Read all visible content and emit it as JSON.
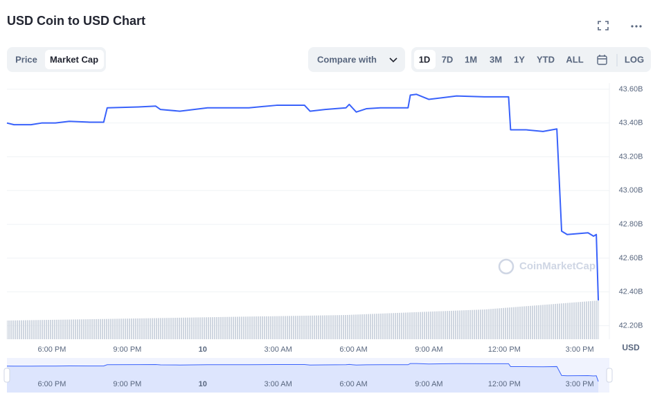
{
  "header": {
    "title": "USD Coin to USD Chart"
  },
  "controls": {
    "tabs": [
      "Price",
      "Market Cap"
    ],
    "compare": "Compare with",
    "ranges": [
      "1D",
      "7D",
      "1M",
      "3M",
      "1Y",
      "YTD",
      "ALL"
    ],
    "log": "LOG"
  },
  "chart_data": {
    "type": "line",
    "watermark": "CoinMarketCap",
    "currency_label": "USD",
    "x": [
      16.21,
      16.49,
      17.17,
      17.59,
      18.14,
      18.69,
      19.51,
      20.06,
      20.2,
      21.44,
      22.13,
      22.32,
      23.09,
      24.19,
      25.84,
      26.94,
      28.05,
      28.27,
      28.87,
      29.7,
      29.83,
      30.11,
      30.52,
      31.07,
      31.9,
      32.17,
      32.26,
      32.5,
      33.0,
      34.1,
      35.2,
      36.17,
      36.25,
      36.85,
      37.54,
      38.09,
      38.28,
      38.5,
      39.33,
      39.55,
      39.66,
      39.74
    ],
    "series": [
      {
        "name": "Market Cap",
        "color": "#3861fb",
        "values": [
          43.4,
          43.39,
          43.39,
          43.4,
          43.4,
          43.41,
          43.405,
          43.405,
          43.49,
          43.495,
          43.5,
          43.48,
          43.47,
          43.49,
          43.49,
          43.505,
          43.505,
          43.47,
          43.48,
          43.49,
          43.51,
          43.465,
          43.485,
          43.49,
          43.49,
          43.49,
          43.565,
          43.57,
          43.54,
          43.56,
          43.555,
          43.555,
          43.36,
          43.36,
          43.35,
          43.365,
          42.76,
          42.74,
          42.75,
          42.73,
          42.74,
          42.35
        ]
      }
    ],
    "xlim": [
      16.21,
      40.18
    ],
    "xticks": [
      {
        "value": 18,
        "label": "6:00 PM"
      },
      {
        "value": 21,
        "label": "9:00 PM"
      },
      {
        "value": 24,
        "label": "10"
      },
      {
        "value": 27,
        "label": "3:00 AM"
      },
      {
        "value": 30,
        "label": "6:00 AM"
      },
      {
        "value": 33,
        "label": "9:00 AM"
      },
      {
        "value": 36,
        "label": "12:00 PM"
      },
      {
        "value": 39,
        "label": "3:00 PM"
      }
    ],
    "ylim": [
      42.12,
      43.62
    ],
    "yticks": [
      {
        "value": 42.2,
        "label": "42.20B"
      },
      {
        "value": 42.4,
        "label": "42.40B"
      },
      {
        "value": 42.6,
        "label": "42.60B"
      },
      {
        "value": 42.8,
        "label": "42.80B"
      },
      {
        "value": 43.0,
        "label": "43.00B"
      },
      {
        "value": 43.2,
        "label": "43.20B"
      },
      {
        "value": 43.4,
        "label": "43.40B"
      },
      {
        "value": 43.6,
        "label": "43.60B"
      }
    ],
    "grid": true
  }
}
